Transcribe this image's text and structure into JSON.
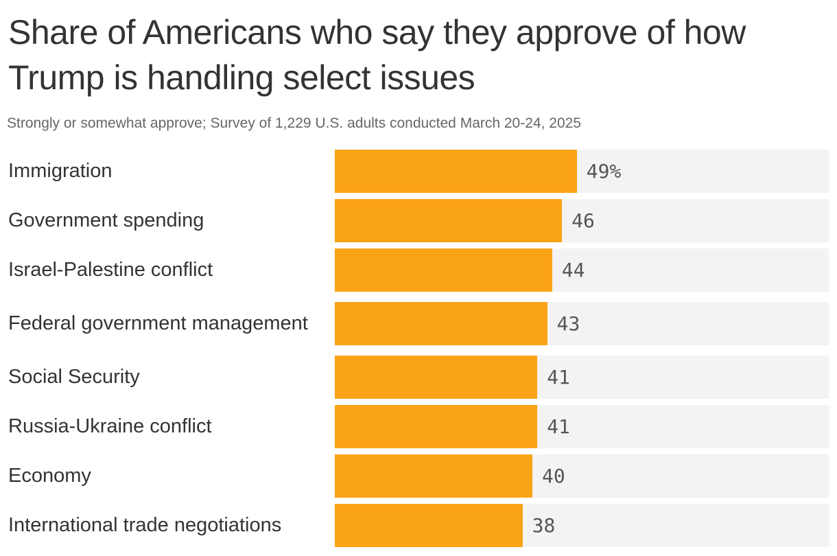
{
  "title": "Share of Americans who say they approve of how Trump is handling select issues",
  "subtitle": "Strongly or somewhat approve; Survey of 1,229 U.S. adults conducted March 20-24, 2025",
  "colors": {
    "bar": "#faa316",
    "track": "#f3f3f3",
    "text": "#333333",
    "subtext": "#666666"
  },
  "chart_data": {
    "type": "bar",
    "orientation": "horizontal",
    "title": "Share of Americans who say they approve of how Trump is handling select issues",
    "subtitle": "Strongly or somewhat approve; Survey of 1,229 U.S. adults conducted March 20-24, 2025",
    "categories": [
      "Immigration",
      "Government spending",
      "Israel-Palestine conflict",
      "Federal government management",
      "Social Security",
      "Russia-Ukraine conflict",
      "Economy",
      "International trade negotiations"
    ],
    "values": [
      49,
      46,
      44,
      43,
      41,
      41,
      40,
      38
    ],
    "value_labels": [
      "49%",
      "46",
      "44",
      "43",
      "41",
      "41",
      "40",
      "38"
    ],
    "unit": "%",
    "xlim": [
      0,
      100
    ],
    "grid": false,
    "legend": "none"
  }
}
